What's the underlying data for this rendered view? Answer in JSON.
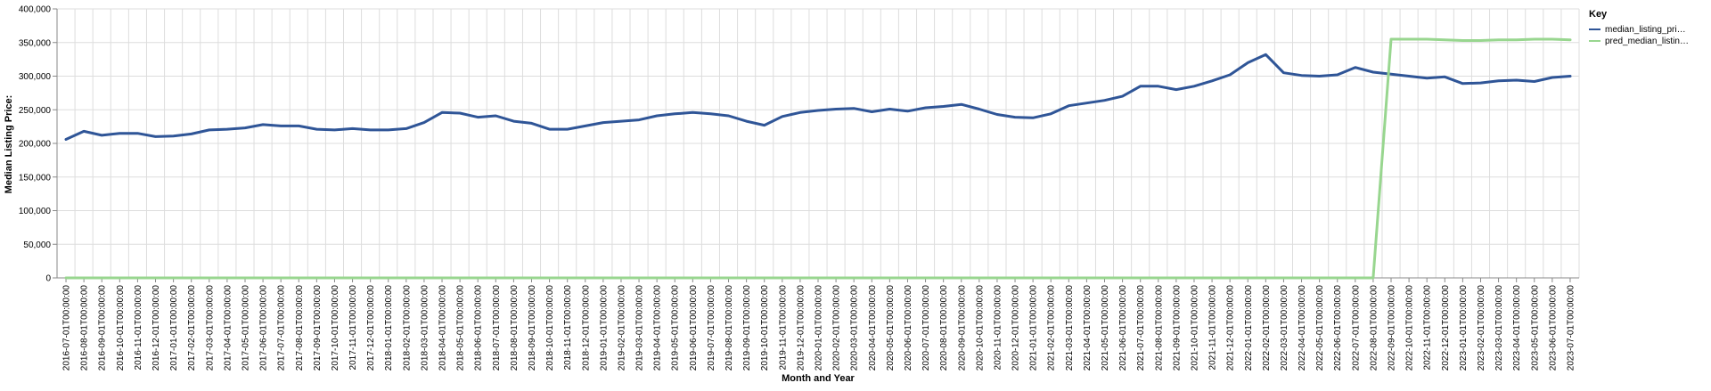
{
  "chart_data": {
    "type": "line",
    "xlabel": "Month and Year",
    "ylabel": "Median Listing Price:",
    "ylim": [
      0,
      400000
    ],
    "y_ticks": [
      "0",
      "50,000",
      "100,000",
      "150,000",
      "200,000",
      "250,000",
      "300,000",
      "350,000",
      "400,000"
    ],
    "y_tick_values": [
      0,
      50000,
      100000,
      150000,
      200000,
      250000,
      300000,
      350000,
      400000
    ],
    "grid": true,
    "legend": {
      "title": "Key",
      "placement": "right",
      "items": [
        {
          "label": "median_listing_pri…",
          "color": "#2f5597"
        },
        {
          "label": "pred_median_listin…",
          "color": "#98d68f"
        }
      ]
    },
    "categories": [
      "2016-07-01T00:00:00",
      "2016-08-01T00:00:00",
      "2016-09-01T00:00:00",
      "2016-10-01T00:00:00",
      "2016-11-01T00:00:00",
      "2016-12-01T00:00:00",
      "2017-01-01T00:00:00",
      "2017-02-01T00:00:00",
      "2017-03-01T00:00:00",
      "2017-04-01T00:00:00",
      "2017-05-01T00:00:00",
      "2017-06-01T00:00:00",
      "2017-07-01T00:00:00",
      "2017-08-01T00:00:00",
      "2017-09-01T00:00:00",
      "2017-10-01T00:00:00",
      "2017-11-01T00:00:00",
      "2017-12-01T00:00:00",
      "2018-01-01T00:00:00",
      "2018-02-01T00:00:00",
      "2018-03-01T00:00:00",
      "2018-04-01T00:00:00",
      "2018-05-01T00:00:00",
      "2018-06-01T00:00:00",
      "2018-07-01T00:00:00",
      "2018-08-01T00:00:00",
      "2018-09-01T00:00:00",
      "2018-10-01T00:00:00",
      "2018-11-01T00:00:00",
      "2018-12-01T00:00:00",
      "2019-01-01T00:00:00",
      "2019-02-01T00:00:00",
      "2019-03-01T00:00:00",
      "2019-04-01T00:00:00",
      "2019-05-01T00:00:00",
      "2019-06-01T00:00:00",
      "2019-07-01T00:00:00",
      "2019-08-01T00:00:00",
      "2019-09-01T00:00:00",
      "2019-10-01T00:00:00",
      "2019-11-01T00:00:00",
      "2019-12-01T00:00:00",
      "2020-01-01T00:00:00",
      "2020-02-01T00:00:00",
      "2020-03-01T00:00:00",
      "2020-04-01T00:00:00",
      "2020-05-01T00:00:00",
      "2020-06-01T00:00:00",
      "2020-07-01T00:00:00",
      "2020-08-01T00:00:00",
      "2020-09-01T00:00:00",
      "2020-10-01T00:00:00",
      "2020-11-01T00:00:00",
      "2020-12-01T00:00:00",
      "2021-01-01T00:00:00",
      "2021-02-01T00:00:00",
      "2021-03-01T00:00:00",
      "2021-04-01T00:00:00",
      "2021-05-01T00:00:00",
      "2021-06-01T00:00:00",
      "2021-07-01T00:00:00",
      "2021-08-01T00:00:00",
      "2021-09-01T00:00:00",
      "2021-10-01T00:00:00",
      "2021-11-01T00:00:00",
      "2021-12-01T00:00:00",
      "2022-01-01T00:00:00",
      "2022-02-01T00:00:00",
      "2022-03-01T00:00:00",
      "2022-04-01T00:00:00",
      "2022-05-01T00:00:00",
      "2022-06-01T00:00:00",
      "2022-07-01T00:00:00",
      "2022-08-01T00:00:00",
      "2022-09-01T00:00:00",
      "2022-10-01T00:00:00",
      "2022-11-01T00:00:00",
      "2022-12-01T00:00:00",
      "2023-01-01T00:00:00",
      "2023-02-01T00:00:00",
      "2023-03-01T00:00:00",
      "2023-04-01T00:00:00",
      "2023-05-01T00:00:00",
      "2023-06-01T00:00:00",
      "2023-07-01T00:00:00"
    ],
    "series": [
      {
        "name": "median_listing_pri…",
        "color": "#2f5597",
        "values": [
          206000,
          218000,
          212000,
          215000,
          215000,
          210000,
          211000,
          214000,
          220000,
          221000,
          223000,
          228000,
          226000,
          226000,
          221000,
          220000,
          222000,
          220000,
          220000,
          222000,
          231000,
          246000,
          245000,
          239000,
          241000,
          233000,
          230000,
          221000,
          221000,
          226000,
          231000,
          233000,
          235000,
          241000,
          244000,
          246000,
          244000,
          241000,
          233000,
          227000,
          240000,
          246000,
          249000,
          251000,
          252000,
          247000,
          251000,
          248000,
          253000,
          255000,
          258000,
          251000,
          243000,
          239000,
          238000,
          244000,
          256000,
          260000,
          264000,
          270000,
          285000,
          285000,
          280000,
          285000,
          293000,
          302000,
          320000,
          332000,
          305000,
          301000,
          300000,
          302000,
          313000,
          306000,
          303000,
          300000,
          297000,
          299000,
          289000,
          290000,
          293000,
          294000,
          292000,
          298000,
          300000
        ]
      },
      {
        "name": "pred_median_listin…",
        "color": "#98d68f",
        "values": [
          0,
          0,
          0,
          0,
          0,
          0,
          0,
          0,
          0,
          0,
          0,
          0,
          0,
          0,
          0,
          0,
          0,
          0,
          0,
          0,
          0,
          0,
          0,
          0,
          0,
          0,
          0,
          0,
          0,
          0,
          0,
          0,
          0,
          0,
          0,
          0,
          0,
          0,
          0,
          0,
          0,
          0,
          0,
          0,
          0,
          0,
          0,
          0,
          0,
          0,
          0,
          0,
          0,
          0,
          0,
          0,
          0,
          0,
          0,
          0,
          0,
          0,
          0,
          0,
          0,
          0,
          0,
          0,
          0,
          0,
          0,
          0,
          0,
          0,
          355000,
          355000,
          355000,
          354000,
          353000,
          353000,
          354000,
          354000,
          355000,
          355000,
          354000
        ]
      }
    ]
  }
}
